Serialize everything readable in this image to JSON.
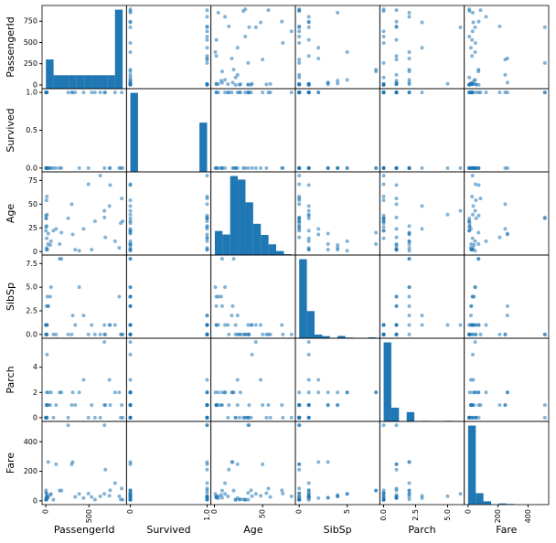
{
  "chart_data": {
    "type": "scatter_matrix",
    "color": "#1f77b4",
    "variables": [
      {
        "name": "PassengerId",
        "lim": [
          -43.5,
          935.5
        ],
        "yticks": [
          0,
          250,
          500,
          750
        ],
        "xticks": [
          0,
          500
        ],
        "bins": [
          1,
          90,
          179,
          268,
          357,
          446,
          535,
          624,
          713,
          802,
          891
        ],
        "counts": [
          325,
          150,
          150,
          150,
          150,
          150,
          150,
          150,
          150,
          880
        ]
      },
      {
        "name": "Survived",
        "lim": [
          -0.05,
          1.05
        ],
        "yticks": [
          {
            "value": 0,
            "label": "0.0"
          },
          0.5,
          {
            "value": 1,
            "label": "1.0"
          }
        ],
        "xticks": [
          0,
          {
            "value": 1,
            "label": "1.0"
          }
        ],
        "bins": [
          0,
          0.1,
          0.2,
          0.3,
          0.4,
          0.5,
          0.6,
          0.7,
          0.8,
          0.9,
          1
        ],
        "counts": [
          549,
          0,
          0,
          0,
          0,
          0,
          0,
          0,
          0,
          342
        ]
      },
      {
        "name": "Age",
        "lim": [
          -3.6,
          84
        ],
        "yticks": [
          0,
          25,
          50,
          75
        ],
        "xticks": [
          0,
          50
        ],
        "bins": [
          0.42,
          8.38,
          16.34,
          24.29,
          32.25,
          40.21,
          48.17,
          56.13,
          64.08,
          72.04,
          80
        ],
        "counts": [
          54,
          46,
          177,
          169,
          118,
          70,
          45,
          24,
          9,
          2
        ]
      },
      {
        "name": "SibSp",
        "lim": [
          -0.4,
          8.4
        ],
        "yticks": [
          {
            "value": 0,
            "label": "0.0"
          },
          2.5,
          {
            "value": 5,
            "label": "5.0"
          },
          7.5
        ],
        "xticks": [
          0,
          5
        ],
        "bins": [
          0,
          0.8,
          1.6,
          2.4,
          3.2,
          4,
          4.8,
          5.6,
          6.4,
          7.2,
          8
        ],
        "counts": [
          608,
          209,
          28,
          16,
          0,
          18,
          5,
          0,
          0,
          7
        ]
      },
      {
        "name": "Parch",
        "lim": [
          -0.3,
          6.3
        ],
        "yticks": [
          0,
          2,
          4
        ],
        "xticks": [
          {
            "value": 0,
            "label": "0.0"
          },
          2.5,
          {
            "value": 5,
            "label": "5.0"
          }
        ],
        "bins": [
          0,
          0.6,
          1.2,
          1.8,
          2.4,
          3,
          3.6,
          4.2,
          4.8,
          5.4,
          6
        ],
        "counts": [
          678,
          118,
          0,
          80,
          0,
          5,
          4,
          0,
          5,
          1
        ]
      },
      {
        "name": "Fare",
        "lim": [
          -25.6,
          537.9
        ],
        "yticks": [
          0,
          200,
          400
        ],
        "xticks": [
          0,
          200,
          400
        ],
        "bins": [
          0,
          51.23,
          102.47,
          153.7,
          204.93,
          256.16,
          307.4,
          358.63,
          409.86,
          461.1,
          512.33
        ],
        "counts": [
          732,
          106,
          31,
          2,
          11,
          6,
          0,
          0,
          0,
          3
        ]
      }
    ],
    "rows": [
      [
        1,
        0,
        22,
        1,
        0,
        7.25
      ],
      [
        2,
        1,
        38,
        1,
        0,
        71.28
      ],
      [
        3,
        1,
        26,
        0,
        0,
        7.93
      ],
      [
        4,
        1,
        35,
        1,
        0,
        53.1
      ],
      [
        5,
        0,
        35,
        0,
        0,
        8.05
      ],
      [
        7,
        0,
        54,
        0,
        0,
        51.86
      ],
      [
        8,
        0,
        2,
        3,
        1,
        21.08
      ],
      [
        9,
        1,
        27,
        0,
        2,
        11.13
      ],
      [
        10,
        1,
        14,
        1,
        0,
        30.07
      ],
      [
        11,
        1,
        4,
        1,
        1,
        16.7
      ],
      [
        12,
        1,
        58,
        0,
        0,
        26.55
      ],
      [
        14,
        0,
        39,
        1,
        5,
        31.28
      ],
      [
        17,
        0,
        2,
        4,
        1,
        29.13
      ],
      [
        25,
        0,
        8,
        3,
        1,
        21.08
      ],
      [
        28,
        0,
        19,
        3,
        2,
        263
      ],
      [
        51,
        0,
        7,
        4,
        1,
        39.69
      ],
      [
        60,
        0,
        11,
        5,
        2,
        46.9
      ],
      [
        88,
        0,
        22,
        0,
        0,
        8.05
      ],
      [
        119,
        0,
        24,
        0,
        1,
        247.52
      ],
      [
        160,
        0,
        8,
        8,
        2,
        69.55
      ],
      [
        181,
        0,
        20,
        8,
        2,
        69.55
      ],
      [
        259,
        1,
        35,
        0,
        0,
        512.33
      ],
      [
        300,
        1,
        50,
        0,
        1,
        247.52
      ],
      [
        312,
        1,
        18,
        2,
        2,
        262.38
      ],
      [
        341,
        1,
        2,
        1,
        1,
        26
      ],
      [
        387,
        0,
        1,
        5,
        2,
        46.9
      ],
      [
        438,
        1,
        24,
        2,
        3,
        18.75
      ],
      [
        494,
        0,
        71,
        0,
        0,
        49.5
      ],
      [
        531,
        1,
        2,
        1,
        1,
        26
      ],
      [
        570,
        1,
        32,
        0,
        0,
        7.85
      ],
      [
        631,
        1,
        80,
        0,
        0,
        30
      ],
      [
        679,
        0,
        43,
        1,
        6,
        46.9
      ],
      [
        680,
        1,
        36,
        0,
        1,
        512.33
      ],
      [
        690,
        1,
        15,
        0,
        1,
        211.34
      ],
      [
        737,
        0,
        48,
        1,
        3,
        34.38
      ],
      [
        746,
        0,
        70,
        1,
        1,
        71
      ],
      [
        803,
        1,
        11,
        1,
        2,
        120
      ],
      [
        851,
        0,
        4,
        4,
        2,
        31.28
      ],
      [
        869,
        0,
        30,
        0,
        0,
        9.5
      ],
      [
        880,
        1,
        56,
        0,
        1,
        83.16
      ],
      [
        891,
        0,
        32,
        0,
        0,
        7.75
      ]
    ]
  }
}
